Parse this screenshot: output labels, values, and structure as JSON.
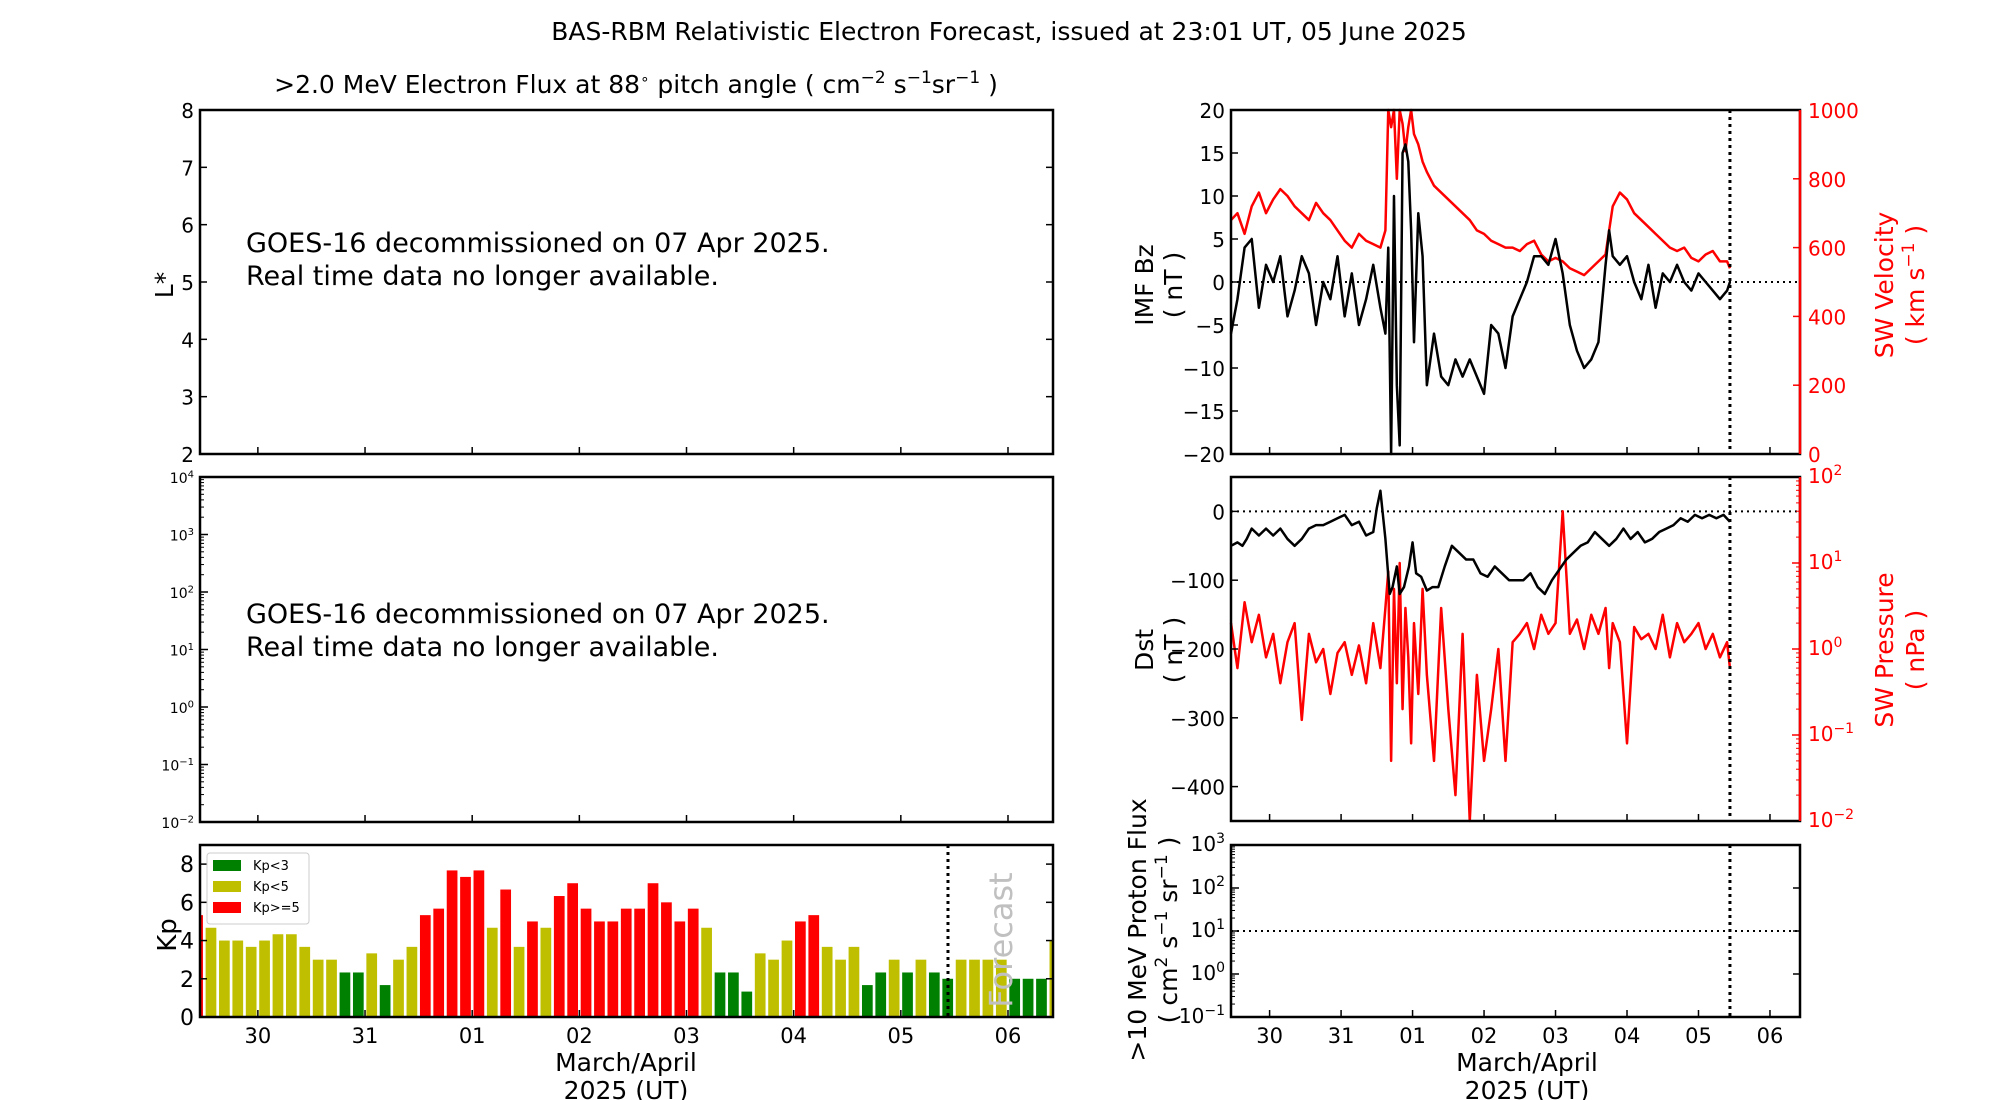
{
  "title": "BAS-RBM Relativistic Electron Forecast, issued at 23:01 UT, 05 June 2025",
  "xaxis": {
    "ticks": [
      "30",
      "31",
      "01",
      "02",
      "03",
      "04",
      "05",
      "06"
    ],
    "label_line1": "March/April",
    "label_line2": "2025 (UT)",
    "xlim_days_from_mar30": [
      -0.54,
      7.42
    ],
    "forecast_start_days_from_mar30": 6.44
  },
  "chart_data": [
    {
      "id": "electron-flux-lstar",
      "type": "heatmap",
      "title": ">2.0 MeV Electron Flux at 88° pitch angle ( cm⁻² s⁻¹ sr⁻¹ )",
      "title_parts": {
        "pre": ">2.0 MeV Electron Flux at 88",
        "deg": "∘",
        "mid": " pitch angle ( cm",
        "e1": "−2",
        "s": " s",
        "e2": "−1",
        "sr": "sr",
        "e3": "−1",
        "post": " )"
      },
      "ylabel": "L*",
      "ylim": [
        2,
        8
      ],
      "yticks": [
        "2",
        "3",
        "4",
        "5",
        "6",
        "7",
        "8"
      ],
      "message_line1": "GOES-16 decommissioned on 07 Apr 2025.",
      "message_line2": "Real time data no longer available."
    },
    {
      "id": "electron-flux-log",
      "type": "line",
      "ylabel": "",
      "yscale": "log",
      "ylim": [
        0.01,
        10000
      ],
      "yticks": [
        {
          "base": "10",
          "exp": "−2"
        },
        {
          "base": "10",
          "exp": "−1"
        },
        {
          "base": "10",
          "exp": "0"
        },
        {
          "base": "10",
          "exp": "1"
        },
        {
          "base": "10",
          "exp": "2"
        },
        {
          "base": "10",
          "exp": "3"
        },
        {
          "base": "10",
          "exp": "4"
        }
      ],
      "message_line1": "GOES-16 decommissioned on 07 Apr 2025.",
      "message_line2": "Real time data no longer available."
    },
    {
      "id": "kp-index",
      "type": "bar",
      "ylabel": "Kp",
      "ylim": [
        0,
        9
      ],
      "yticks": [
        "0",
        "2",
        "4",
        "6",
        "8"
      ],
      "bin_hours": 3,
      "first_bar_center_days_from_mar30": -0.5625,
      "values": [
        5.33,
        4.67,
        4.0,
        4.0,
        3.67,
        4.0,
        4.33,
        4.33,
        3.67,
        3.0,
        3.0,
        2.33,
        2.33,
        3.33,
        1.67,
        3.0,
        3.67,
        5.33,
        5.67,
        7.67,
        7.33,
        7.67,
        4.67,
        6.67,
        3.67,
        5.0,
        4.67,
        6.33,
        7.0,
        5.67,
        5.0,
        5.0,
        5.67,
        5.67,
        7.0,
        6.0,
        5.0,
        5.67,
        4.67,
        2.33,
        2.33,
        1.33,
        3.33,
        3.0,
        4.0,
        5.0,
        5.33,
        3.67,
        3.0,
        3.67,
        1.67,
        2.33,
        3.0,
        2.33,
        3.0,
        2.33,
        2.0,
        3.0,
        3.0,
        3.0,
        3.0,
        2.0,
        2.0,
        2.0,
        4.0
      ],
      "forecast_label": "Forecast",
      "legend": [
        {
          "label": "Kp<3",
          "color": "#008000"
        },
        {
          "label": "Kp<5",
          "color": "#bfbf00"
        },
        {
          "label": "Kp>=5",
          "color": "#ff0000"
        }
      ],
      "legend_position": "top-left"
    },
    {
      "id": "imf-bz-sw-velocity",
      "type": "line",
      "ylabel_line1": "IMF Bz",
      "ylabel_line2": "( nT )",
      "ylim": [
        -20,
        20
      ],
      "yticks": [
        "−20",
        "−15",
        "−10",
        "−5",
        "0",
        "5",
        "10",
        "15",
        "20"
      ],
      "y2label_line1": "SW Velocity",
      "y2label_unit": {
        "pre": "( km s",
        "exp": "−1",
        "post": " )"
      },
      "y2lim": [
        0,
        1000
      ],
      "y2ticks": [
        "0",
        "200",
        "400",
        "600",
        "800",
        "1000"
      ],
      "series": [
        {
          "name": "IMF Bz",
          "color": "#000000",
          "axis": "left",
          "x": [
            -0.54,
            -0.45,
            -0.35,
            -0.25,
            -0.15,
            -0.05,
            0.05,
            0.15,
            0.25,
            0.35,
            0.45,
            0.55,
            0.65,
            0.75,
            0.85,
            0.95,
            1.05,
            1.15,
            1.25,
            1.35,
            1.45,
            1.55,
            1.62,
            1.66,
            1.7,
            1.74,
            1.78,
            1.82,
            1.86,
            1.9,
            1.94,
            1.98,
            2.02,
            2.08,
            2.14,
            2.2,
            2.3,
            2.4,
            2.5,
            2.6,
            2.7,
            2.8,
            2.9,
            3.0,
            3.1,
            3.2,
            3.3,
            3.4,
            3.5,
            3.6,
            3.7,
            3.8,
            3.9,
            4.0,
            4.1,
            4.2,
            4.3,
            4.4,
            4.5,
            4.6,
            4.7,
            4.75,
            4.8,
            4.9,
            5.0,
            5.1,
            5.2,
            5.3,
            5.4,
            5.5,
            5.6,
            5.7,
            5.8,
            5.9,
            6.0,
            6.1,
            6.2,
            6.3,
            6.4,
            6.44
          ],
          "y": [
            -6,
            -2,
            4,
            5,
            -3,
            2,
            0,
            3,
            -4,
            -1,
            3,
            1,
            -5,
            0,
            -2,
            3,
            -4,
            1,
            -5,
            -2,
            2,
            -3,
            -6,
            4,
            -20,
            10,
            -12,
            -19,
            15,
            16,
            14,
            6,
            -7,
            8,
            3,
            -12,
            -6,
            -11,
            -12,
            -9,
            -11,
            -9,
            -11,
            -13,
            -5,
            -6,
            -10,
            -4,
            -2,
            0,
            3,
            3,
            2,
            5,
            1,
            -5,
            -8,
            -10,
            -9,
            -7,
            2,
            6,
            3,
            2,
            3,
            0,
            -2,
            2,
            -3,
            1,
            0,
            2,
            0,
            -1,
            1,
            0,
            -1,
            -2,
            -1,
            0
          ]
        },
        {
          "name": "SW Velocity",
          "color": "#ff0000",
          "axis": "right",
          "x": [
            -0.54,
            -0.45,
            -0.35,
            -0.25,
            -0.15,
            -0.05,
            0.05,
            0.15,
            0.25,
            0.35,
            0.45,
            0.55,
            0.65,
            0.75,
            0.85,
            0.95,
            1.05,
            1.15,
            1.25,
            1.35,
            1.45,
            1.55,
            1.62,
            1.66,
            1.7,
            1.74,
            1.78,
            1.82,
            1.86,
            1.9,
            1.94,
            1.98,
            2.02,
            2.08,
            2.14,
            2.2,
            2.3,
            2.4,
            2.5,
            2.6,
            2.7,
            2.8,
            2.9,
            3.0,
            3.1,
            3.2,
            3.3,
            3.4,
            3.5,
            3.6,
            3.7,
            3.8,
            3.9,
            4.0,
            4.1,
            4.2,
            4.3,
            4.4,
            4.5,
            4.6,
            4.7,
            4.75,
            4.8,
            4.9,
            5.0,
            5.1,
            5.2,
            5.3,
            5.4,
            5.5,
            5.6,
            5.7,
            5.8,
            5.9,
            6.0,
            6.1,
            6.2,
            6.3,
            6.4,
            6.44
          ],
          "y": [
            680,
            700,
            640,
            720,
            760,
            700,
            740,
            770,
            750,
            720,
            700,
            680,
            730,
            700,
            680,
            650,
            620,
            600,
            640,
            620,
            610,
            600,
            650,
            1000,
            950,
            1000,
            800,
            1000,
            960,
            880,
            950,
            1000,
            930,
            900,
            850,
            820,
            780,
            760,
            740,
            720,
            700,
            680,
            650,
            640,
            620,
            610,
            600,
            600,
            590,
            610,
            620,
            580,
            560,
            570,
            560,
            540,
            530,
            520,
            540,
            560,
            580,
            650,
            720,
            760,
            740,
            700,
            680,
            660,
            640,
            620,
            600,
            590,
            600,
            570,
            560,
            580,
            590,
            560,
            560,
            540
          ]
        }
      ],
      "zero_line": 0
    },
    {
      "id": "dst-sw-pressure",
      "type": "line",
      "ylabel_line1": "Dst",
      "ylabel_line2": "( nT )",
      "ylim": [
        -450,
        50
      ],
      "yticks": [
        "−400",
        "−300",
        "−200",
        "−100",
        "0"
      ],
      "y2label_line1": "SW Pressure",
      "y2label_line2": "( nPa )",
      "y2scale": "log",
      "y2lim": [
        0.01,
        100
      ],
      "y2ticks": [
        {
          "base": "10",
          "exp": "−2"
        },
        {
          "base": "10",
          "exp": "−1"
        },
        {
          "base": "10",
          "exp": "0"
        },
        {
          "base": "10",
          "exp": "1"
        },
        {
          "base": "10",
          "exp": "2"
        }
      ],
      "series": [
        {
          "name": "Dst",
          "color": "#000000",
          "axis": "left",
          "x": [
            -0.54,
            -0.45,
            -0.38,
            -0.32,
            -0.25,
            -0.15,
            -0.05,
            0.05,
            0.15,
            0.25,
            0.35,
            0.45,
            0.55,
            0.65,
            0.75,
            0.85,
            0.95,
            1.05,
            1.15,
            1.25,
            1.35,
            1.45,
            1.5,
            1.55,
            1.62,
            1.68,
            1.72,
            1.78,
            1.82,
            1.88,
            1.95,
            2.0,
            2.05,
            2.12,
            2.2,
            2.28,
            2.36,
            2.45,
            2.55,
            2.65,
            2.75,
            2.85,
            2.95,
            3.05,
            3.15,
            3.25,
            3.35,
            3.45,
            3.55,
            3.65,
            3.75,
            3.85,
            3.95,
            4.05,
            4.15,
            4.25,
            4.35,
            4.45,
            4.55,
            4.65,
            4.75,
            4.85,
            4.95,
            5.05,
            5.15,
            5.25,
            5.35,
            5.45,
            5.55,
            5.65,
            5.75,
            5.85,
            5.95,
            6.05,
            6.15,
            6.25,
            6.35,
            6.44
          ],
          "y": [
            -50,
            -45,
            -50,
            -40,
            -25,
            -35,
            -25,
            -35,
            -25,
            -40,
            -50,
            -40,
            -25,
            -20,
            -20,
            -15,
            -10,
            -5,
            -20,
            -15,
            -35,
            -30,
            5,
            30,
            -40,
            -120,
            -110,
            -80,
            -120,
            -110,
            -80,
            -45,
            -90,
            -95,
            -115,
            -110,
            -110,
            -80,
            -50,
            -60,
            -70,
            -70,
            -90,
            -95,
            -80,
            -90,
            -100,
            -100,
            -100,
            -90,
            -110,
            -120,
            -100,
            -85,
            -70,
            -60,
            -50,
            -45,
            -30,
            -40,
            -50,
            -40,
            -25,
            -40,
            -30,
            -45,
            -40,
            -30,
            -25,
            -20,
            -10,
            -15,
            -5,
            -10,
            -5,
            -10,
            -5,
            -15
          ]
        },
        {
          "name": "SW Pressure",
          "color": "#ff0000",
          "axis": "right",
          "x": [
            -0.54,
            -0.45,
            -0.35,
            -0.25,
            -0.15,
            -0.05,
            0.05,
            0.15,
            0.25,
            0.35,
            0.45,
            0.55,
            0.65,
            0.75,
            0.85,
            0.95,
            1.05,
            1.15,
            1.25,
            1.35,
            1.45,
            1.55,
            1.62,
            1.66,
            1.7,
            1.74,
            1.78,
            1.82,
            1.86,
            1.9,
            1.94,
            1.98,
            2.02,
            2.08,
            2.14,
            2.2,
            2.3,
            2.4,
            2.5,
            2.6,
            2.7,
            2.8,
            2.9,
            3.0,
            3.1,
            3.2,
            3.3,
            3.4,
            3.5,
            3.6,
            3.7,
            3.8,
            3.9,
            4.0,
            4.1,
            4.2,
            4.3,
            4.4,
            4.5,
            4.6,
            4.7,
            4.75,
            4.8,
            4.9,
            5.0,
            5.1,
            5.2,
            5.3,
            5.4,
            5.5,
            5.6,
            5.7,
            5.8,
            5.9,
            6.0,
            6.1,
            6.2,
            6.3,
            6.4,
            6.44
          ],
          "y": [
            2.0,
            0.6,
            3.5,
            1.2,
            2.5,
            0.8,
            1.5,
            0.4,
            1.2,
            2.0,
            0.15,
            1.5,
            0.7,
            1.0,
            0.3,
            0.9,
            1.2,
            0.5,
            1.1,
            0.4,
            2.0,
            0.6,
            3.0,
            8.0,
            0.05,
            5.0,
            0.4,
            10,
            0.2,
            3,
            0.8,
            0.08,
            2,
            0.3,
            5,
            0.5,
            0.05,
            3,
            0.2,
            0.02,
            1.5,
            0.01,
            0.5,
            0.05,
            0.2,
            1.0,
            0.05,
            1.2,
            1.5,
            2.0,
            1.0,
            2.5,
            1.5,
            2.0,
            40,
            1.5,
            2.2,
            1.0,
            2.5,
            1.5,
            3.0,
            0.6,
            2.0,
            1.2,
            0.08,
            1.8,
            1.3,
            1.5,
            1.0,
            2.5,
            0.8,
            2.0,
            1.2,
            1.5,
            2.0,
            1.0,
            1.5,
            0.8,
            1.2,
            0.6
          ]
        }
      ],
      "zero_line": 0
    },
    {
      "id": "proton-flux",
      "type": "line",
      "ylabel_line1": ">10 MeV Proton Flux",
      "ylabel_unit": {
        "pre": "( cm",
        "e1": "2",
        "mid": " s",
        "e2": "−1",
        "sr": " sr",
        "e3": "−1",
        "post": " )"
      },
      "yscale": "log",
      "ylim": [
        0.1,
        1000
      ],
      "yticks": [
        {
          "base": "10",
          "exp": "−1"
        },
        {
          "base": "10",
          "exp": "0"
        },
        {
          "base": "10",
          "exp": "1"
        },
        {
          "base": "10",
          "exp": "2"
        },
        {
          "base": "10",
          "exp": "3"
        }
      ],
      "threshold_line": 10,
      "series": []
    }
  ]
}
